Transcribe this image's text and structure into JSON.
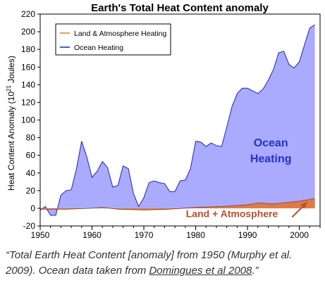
{
  "chart_data": {
    "type": "area",
    "title": "Earth's Total Heat Content anomaly",
    "ylabel": "Heat Content Anomaly (10^21 Joules)",
    "ylabel_parts": {
      "before": "Heat Content Anomaly (10",
      "sup": "21",
      "after": " Joules)"
    },
    "xlabel": "",
    "xlim": [
      1950,
      2004
    ],
    "ylim": [
      -20,
      220
    ],
    "xticks": [
      1950,
      1960,
      1970,
      1980,
      1990,
      2000
    ],
    "yticks": [
      -20,
      0,
      20,
      40,
      60,
      80,
      100,
      120,
      140,
      160,
      180,
      200,
      220
    ],
    "grid": false,
    "legend": {
      "position": "top-left",
      "entries": [
        "Land & Atmosphere Heating",
        "Ocean Heating"
      ]
    },
    "annotations": {
      "ocean": [
        "Ocean",
        "Heating"
      ],
      "land": "Land + Atmosphere"
    },
    "series": [
      {
        "name": "Ocean Heating",
        "color": "#aaaaff",
        "line_color": "#2222bb",
        "x": [
          1950,
          1951,
          1952,
          1953,
          1954,
          1955,
          1956,
          1957,
          1958,
          1959,
          1960,
          1961,
          1962,
          1963,
          1964,
          1965,
          1966,
          1967,
          1968,
          1969,
          1970,
          1971,
          1972,
          1973,
          1974,
          1975,
          1976,
          1977,
          1978,
          1979,
          1980,
          1981,
          1982,
          1983,
          1984,
          1985,
          1986,
          1987,
          1988,
          1989,
          1990,
          1991,
          1992,
          1993,
          1994,
          1995,
          1996,
          1997,
          1998,
          1999,
          2000,
          2001,
          2002,
          2003
        ],
        "values": [
          -2,
          2,
          -8,
          -8,
          15,
          20,
          21,
          45,
          76,
          58,
          35,
          42,
          53,
          46,
          24,
          26,
          48,
          45,
          17,
          2,
          12,
          29,
          31,
          29,
          28,
          19,
          19,
          31,
          32,
          45,
          76,
          75,
          70,
          74,
          71,
          70,
          92,
          115,
          130,
          136,
          136,
          133,
          130,
          135,
          145,
          157,
          176,
          178,
          163,
          159,
          166,
          185,
          204,
          208
        ]
      },
      {
        "name": "Land & Atmosphere Heating",
        "color": "#e07a45",
        "line_color": "#8b3a10",
        "x": [
          1950,
          1955,
          1960,
          1962,
          1965,
          1970,
          1975,
          1980,
          1985,
          1990,
          1992,
          1995,
          2000,
          2003
        ],
        "values": [
          -1,
          -1,
          0,
          1,
          -1,
          -2,
          -1,
          1,
          2,
          4,
          6,
          5,
          8,
          11
        ]
      }
    ]
  },
  "caption": {
    "text": "“Total Earth Heat Content [anomaly] from 1950 (Murphy et al. 2009). Ocean data taken from ",
    "link": "Domingues et al 2008",
    "end": ".”"
  },
  "colors": {
    "ocean_fill": "#aaaaff",
    "ocean_line": "#2222bb",
    "land_fill": "#e07a45",
    "ocean_label": "#2233cc",
    "land_label": "#b8502a"
  }
}
